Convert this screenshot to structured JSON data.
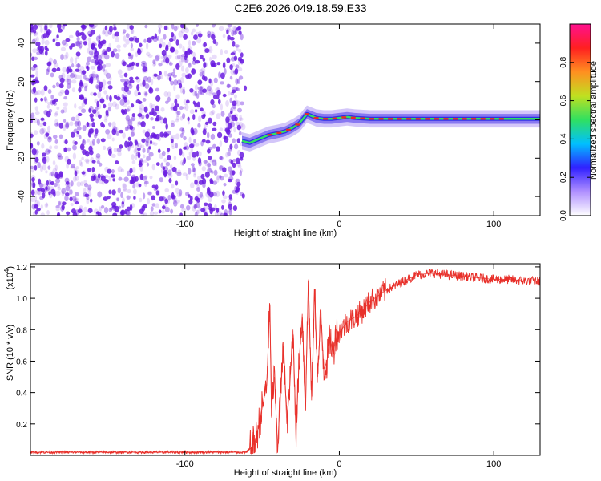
{
  "title": "C2E6.2026.049.18.59.E33",
  "colors": {
    "scatter": "#6a1be0",
    "snr_line": "#e8302a",
    "ridge_low": "#2f2fe8",
    "ridge_mid": "#30e060",
    "ridge_high": "#e82828"
  },
  "chart_data": [
    {
      "type": "heatmap",
      "title": "",
      "xlabel": "Height of straight line (km)",
      "ylabel": "Frequency (Hz)",
      "xlim": [
        -200,
        130
      ],
      "ylim": [
        -50,
        50
      ],
      "xticks": [
        {
          "value": -100,
          "label": "-100"
        },
        {
          "value": 0,
          "label": "0"
        },
        {
          "value": 100,
          "label": "100"
        }
      ],
      "yticks": [
        {
          "value": -40,
          "label": "-40"
        },
        {
          "value": -20,
          "label": "-20"
        },
        {
          "value": 0,
          "label": "0"
        },
        {
          "value": 20,
          "label": "20"
        },
        {
          "value": 40,
          "label": "40"
        }
      ],
      "noise_region_x": [
        -200,
        -63
      ],
      "ridge": {
        "x": [
          -63,
          -58,
          -52,
          -46,
          -40,
          -35,
          -30,
          -26,
          -23,
          -21,
          -18,
          -15,
          -10,
          -5,
          0,
          5,
          10,
          20,
          40,
          60,
          80,
          100,
          130
        ],
        "y": [
          -11,
          -12,
          -10,
          -8,
          -7,
          -6,
          -4,
          -2,
          1,
          3,
          2,
          1,
          0.5,
          0.5,
          1,
          1.5,
          1,
          0.5,
          0.5,
          0.5,
          0.5,
          0.5,
          0.5
        ]
      },
      "colorbar": {
        "label": "Normalized spectral amplitude",
        "range": [
          0,
          1
        ],
        "ticks": [
          {
            "value": 0.0,
            "label": "0.0"
          },
          {
            "value": 0.2,
            "label": "0.2"
          },
          {
            "value": 0.4,
            "label": "0.4"
          },
          {
            "value": 0.6,
            "label": "0.6"
          },
          {
            "value": 0.8,
            "label": "0.8"
          }
        ],
        "stops": [
          "#ffffff",
          "#b090ff",
          "#3020ff",
          "#00c0ff",
          "#30e060",
          "#c0e020",
          "#ff9020",
          "#ff2020",
          "#ff1090"
        ]
      }
    },
    {
      "type": "line",
      "title": "",
      "xlabel": "Height of straight line (km)",
      "ylabel": "SNR (10 * v/v)",
      "scale_label": "(x10",
      "scale_exp": "4",
      "scale_close": ")",
      "xlim": [
        -200,
        130
      ],
      "ylim": [
        0,
        1.22
      ],
      "xticks": [
        {
          "value": -100,
          "label": "-100"
        },
        {
          "value": 0,
          "label": "0"
        },
        {
          "value": 100,
          "label": "100"
        }
      ],
      "yticks": [
        {
          "value": 0.2,
          "label": "0.2"
        },
        {
          "value": 0.4,
          "label": "0.4"
        },
        {
          "value": 0.6,
          "label": "0.6"
        },
        {
          "value": 0.8,
          "label": "0.8"
        },
        {
          "value": 1.0,
          "label": "1.0"
        },
        {
          "value": 1.2,
          "label": "1.2"
        }
      ],
      "series": [
        {
          "name": "SNR",
          "x": [
            -200,
            -150,
            -100,
            -60,
            -57,
            -54,
            -50,
            -47,
            -45,
            -44,
            -42,
            -40,
            -38,
            -36,
            -34,
            -32,
            -30,
            -28,
            -26,
            -24,
            -22,
            -20,
            -18,
            -16,
            -14,
            -12,
            -10,
            -8,
            -6,
            -4,
            -2,
            0,
            5,
            10,
            15,
            20,
            30,
            40,
            50,
            60,
            70,
            80,
            90,
            100,
            110,
            120,
            130
          ],
          "y": [
            0.02,
            0.02,
            0.02,
            0.02,
            0.05,
            0.1,
            0.3,
            0.45,
            0.96,
            0.3,
            0.5,
            0.05,
            0.4,
            0.7,
            0.2,
            0.45,
            0.8,
            0.15,
            0.6,
            0.9,
            0.3,
            1.12,
            0.35,
            1.05,
            0.5,
            0.9,
            0.55,
            0.6,
            0.75,
            0.65,
            0.8,
            0.78,
            0.85,
            0.88,
            0.92,
            0.98,
            1.05,
            1.1,
            1.15,
            1.16,
            1.15,
            1.14,
            1.13,
            1.12,
            1.12,
            1.11,
            1.11
          ]
        }
      ]
    }
  ]
}
